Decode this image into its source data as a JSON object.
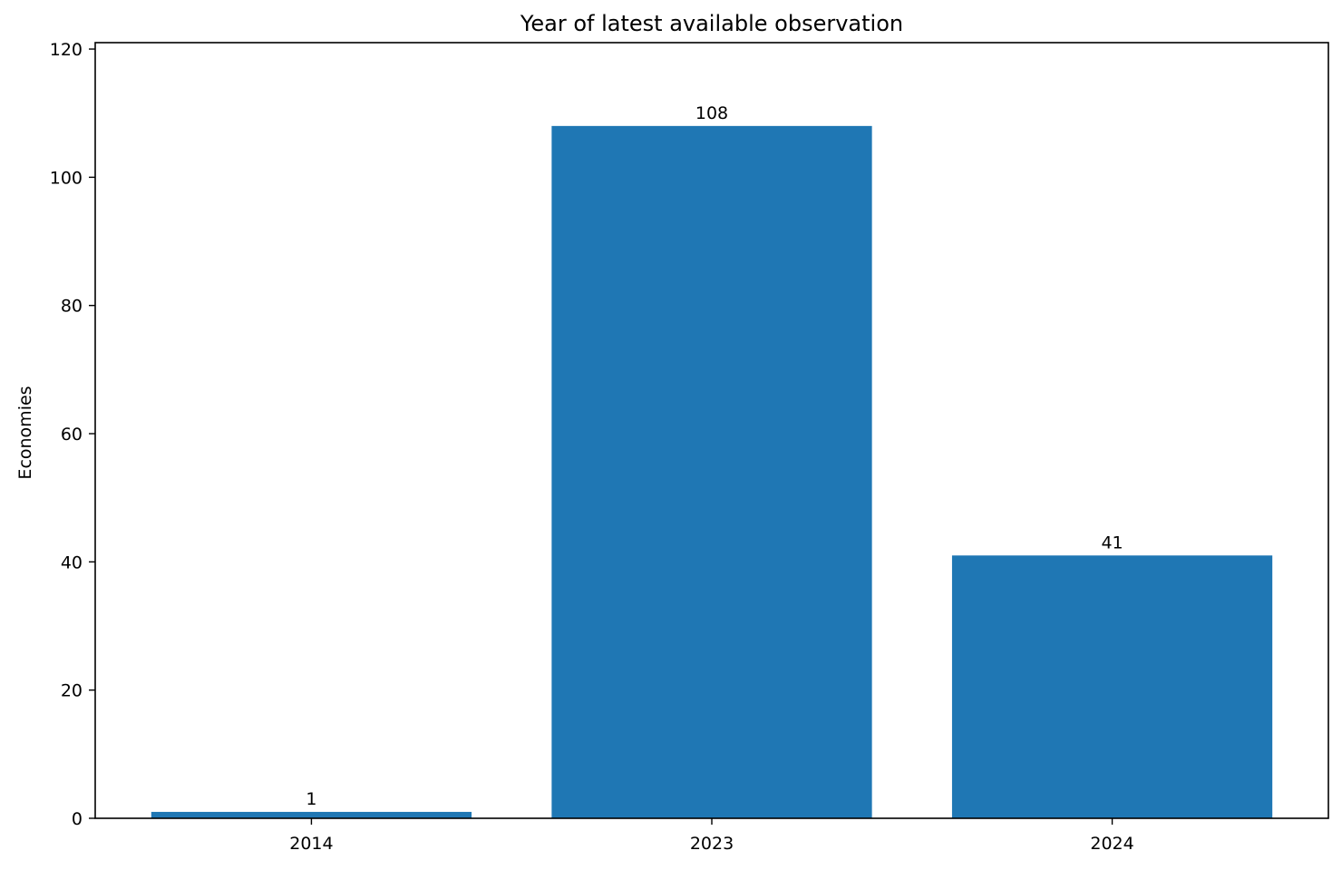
{
  "chart_data": {
    "type": "bar",
    "title": "Year of latest available observation",
    "xlabel": "",
    "ylabel": "Economies",
    "categories": [
      "2014",
      "2023",
      "2024"
    ],
    "values": [
      1,
      108,
      41
    ],
    "value_labels": [
      "1",
      "108",
      "41"
    ],
    "ylim": [
      0,
      121
    ],
    "yticks": [
      0,
      20,
      40,
      60,
      80,
      100,
      120
    ],
    "grid": false,
    "legend": "none",
    "bar_color": "#1f77b4"
  }
}
